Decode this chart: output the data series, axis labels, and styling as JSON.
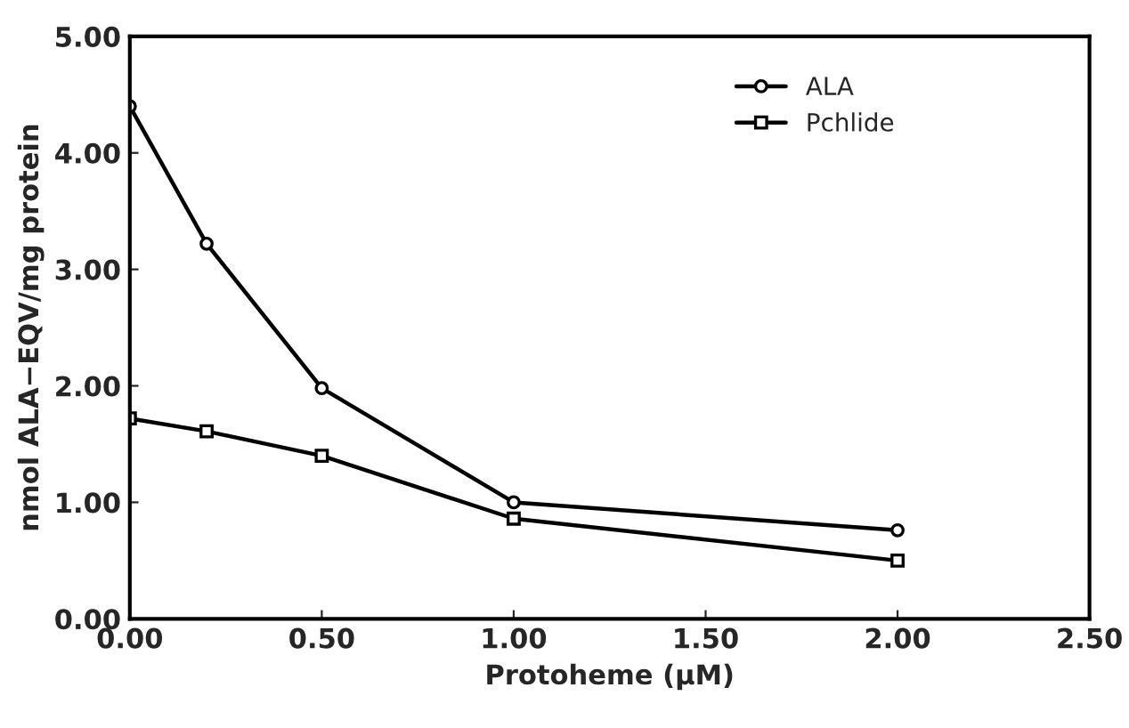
{
  "chart_data": {
    "type": "line",
    "xlabel": "Protoheme (μM)",
    "ylabel": "nmol ALA−EQV/mg protein",
    "series": [
      {
        "name": "ALA",
        "color": "#000000",
        "marker": "circle",
        "x": [
          0,
          0.2,
          0.5,
          1.0,
          2.0
        ],
        "values": [
          4.4,
          3.22,
          1.98,
          1.0,
          0.76
        ]
      },
      {
        "name": "Pchlide",
        "color": "#000000",
        "marker": "square",
        "x": [
          0,
          0.2,
          0.5,
          1.0,
          2.0
        ],
        "values": [
          1.72,
          1.61,
          1.4,
          0.86,
          0.5
        ]
      }
    ],
    "xlim": [
      0,
      2.5
    ],
    "xticks": [
      {
        "value": 0,
        "label": "0.00"
      },
      {
        "value": 0.5,
        "label": "0.50"
      },
      {
        "value": 1.0,
        "label": "1.00"
      },
      {
        "value": 1.5,
        "label": "1.50"
      },
      {
        "value": 2.0,
        "label": "2.00"
      },
      {
        "value": 2.5,
        "label": "2.50"
      }
    ],
    "ylim": [
      0,
      5
    ],
    "yticks": [
      {
        "value": 0,
        "label": "0.00"
      },
      {
        "value": 1,
        "label": "1.00"
      },
      {
        "value": 2,
        "label": "2.00"
      },
      {
        "value": 3,
        "label": "3.00"
      },
      {
        "value": 4,
        "label": "4.00"
      },
      {
        "value": 5,
        "label": "5.00"
      }
    ],
    "grid": false,
    "legend": "top right",
    "line_style": "solid"
  }
}
